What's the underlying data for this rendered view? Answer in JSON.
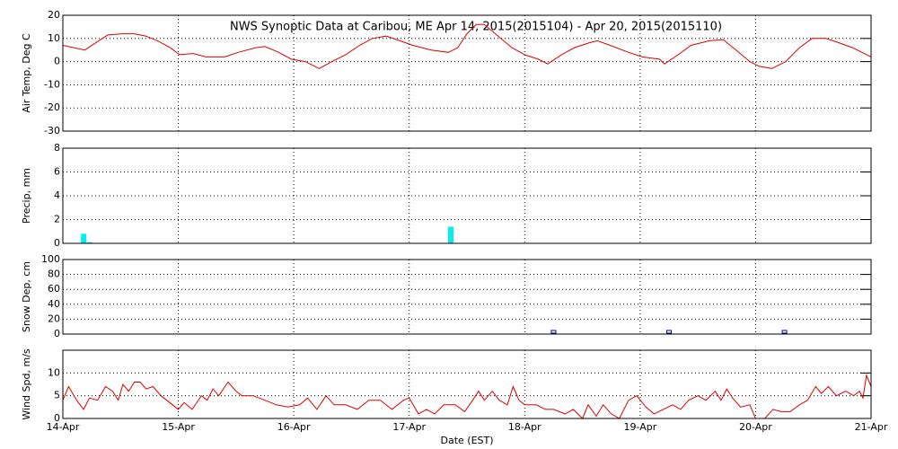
{
  "chart_data": [
    {
      "type": "line",
      "title": "NWS Synoptic Data at Caribou, ME   Apr 14, 2015(2015104) - Apr 20, 2015(2015110)",
      "y_label": "Air Temp, Deg C",
      "color": "#dd0000",
      "grid": true,
      "xlim": [
        0,
        7
      ],
      "xticks": [
        0,
        1,
        2,
        3,
        4,
        5,
        6,
        7
      ],
      "ylim": [
        -30,
        20
      ],
      "yticks": [
        -30,
        -20,
        -10,
        0,
        10,
        20
      ],
      "x": [
        0,
        0.19,
        0.31,
        0.39,
        0.51,
        0.62,
        0.72,
        0.82,
        0.93,
        1.01,
        1.13,
        1.24,
        1.4,
        1.52,
        1.67,
        1.75,
        1.87,
        1.98,
        2.1,
        2.22,
        2.33,
        2.45,
        2.57,
        2.68,
        2.8,
        2.92,
        3.03,
        3.19,
        3.34,
        3.42,
        3.5,
        3.58,
        3.65,
        3.77,
        3.89,
        4.0,
        4.12,
        4.2,
        4.32,
        4.43,
        4.55,
        4.63,
        4.74,
        4.9,
        5.02,
        5.17,
        5.21,
        5.33,
        5.44,
        5.6,
        5.72,
        5.83,
        5.95,
        6.03,
        6.14,
        6.26,
        6.38,
        6.49,
        6.61,
        6.73,
        6.84,
        7.0
      ],
      "values": [
        7,
        5,
        9,
        11.5,
        12,
        12,
        11,
        9,
        6,
        3,
        3.5,
        2,
        2,
        4,
        6,
        6.5,
        4,
        1,
        0,
        -3,
        0,
        3,
        7,
        10,
        11,
        9,
        7,
        5,
        4,
        6,
        12,
        16,
        16,
        11,
        6,
        3,
        1,
        -1,
        3,
        6,
        8,
        9,
        7,
        4,
        2,
        1,
        -1,
        3,
        7,
        9,
        9.5,
        5,
        0,
        -2,
        -3,
        0,
        6,
        10,
        10,
        8,
        6,
        2
      ]
    },
    {
      "type": "bar",
      "y_label": "Precip, mm",
      "color": "#00f0f0",
      "grid": true,
      "xlim": [
        0,
        7
      ],
      "xticks": [
        0,
        1,
        2,
        3,
        4,
        5,
        6,
        7
      ],
      "ylim": [
        0,
        8
      ],
      "yticks": [
        0,
        2,
        4,
        6,
        8
      ],
      "x": [
        0.18,
        0.23,
        3.36
      ],
      "values": [
        0.8,
        0.1,
        1.4
      ]
    },
    {
      "type": "scatter",
      "y_label": "Snow Dep, cm",
      "color": "#000080",
      "grid": true,
      "xlim": [
        0,
        7
      ],
      "xticks": [
        0,
        1,
        2,
        3,
        4,
        5,
        6,
        7
      ],
      "ylim": [
        0,
        100
      ],
      "yticks": [
        0,
        20,
        40,
        60,
        80,
        100
      ],
      "x": [
        4.25,
        5.25,
        6.25
      ],
      "values": [
        0,
        0,
        0
      ]
    },
    {
      "type": "line",
      "y_label": "Wind Spd, m/s",
      "x_label": "Date (EST)",
      "color": "#dd0000",
      "grid": true,
      "xlim": [
        0,
        7
      ],
      "xticks": [
        {
          "value": 0,
          "label": "14-Apr"
        },
        {
          "value": 1,
          "label": "15-Apr"
        },
        {
          "value": 2,
          "label": "16-Apr"
        },
        {
          "value": 3,
          "label": "17-Apr"
        },
        {
          "value": 4,
          "label": "18-Apr"
        },
        {
          "value": 5,
          "label": "19-Apr"
        },
        {
          "value": 6,
          "label": "20-Apr"
        },
        {
          "value": 7,
          "label": "21-Apr"
        }
      ],
      "ylim": [
        0,
        15
      ],
      "yticks": [
        0,
        5,
        10
      ],
      "x": [
        0,
        0.05,
        0.12,
        0.18,
        0.23,
        0.3,
        0.37,
        0.43,
        0.48,
        0.52,
        0.57,
        0.62,
        0.67,
        0.72,
        0.78,
        0.85,
        0.95,
        1.0,
        1.05,
        1.12,
        1.2,
        1.25,
        1.3,
        1.35,
        1.43,
        1.5,
        1.55,
        1.65,
        1.75,
        1.85,
        1.95,
        2.05,
        2.12,
        2.2,
        2.28,
        2.35,
        2.45,
        2.55,
        2.65,
        2.75,
        2.85,
        2.95,
        3.0,
        3.08,
        3.15,
        3.22,
        3.3,
        3.4,
        3.48,
        3.55,
        3.6,
        3.65,
        3.72,
        3.78,
        3.85,
        3.9,
        3.95,
        4.0,
        4.1,
        4.18,
        4.25,
        4.35,
        4.42,
        4.5,
        4.55,
        4.62,
        4.68,
        4.75,
        4.82,
        4.9,
        4.97,
        5.05,
        5.12,
        5.2,
        5.28,
        5.35,
        5.42,
        5.5,
        5.57,
        5.65,
        5.7,
        5.75,
        5.8,
        5.87,
        5.95,
        6.0,
        6.08,
        6.15,
        6.22,
        6.3,
        6.38,
        6.45,
        6.52,
        6.57,
        6.63,
        6.7,
        6.78,
        6.85,
        6.9,
        6.93,
        6.96,
        7.0
      ],
      "values": [
        4,
        7,
        4,
        2,
        4.5,
        4,
        7,
        6,
        4,
        7.5,
        6,
        8,
        8,
        6.5,
        7,
        5,
        3,
        2,
        3.5,
        2,
        5,
        4,
        6.5,
        5,
        8,
        6,
        5,
        5,
        4,
        3,
        2.5,
        3,
        4.5,
        2,
        5,
        3,
        3,
        2,
        4,
        4,
        2,
        4,
        4.5,
        1,
        2,
        1,
        3,
        3,
        1.5,
        4,
        6,
        4,
        6,
        4,
        3,
        7,
        4,
        3,
        3,
        2,
        2,
        1,
        2,
        0,
        3,
        0.5,
        3,
        1,
        0,
        4,
        5,
        2.5,
        1,
        2,
        3,
        2,
        4,
        5,
        4,
        6,
        4,
        6.5,
        4.5,
        2.5,
        3,
        0,
        0,
        2,
        1.5,
        1.5,
        3,
        4,
        7,
        5.5,
        7,
        5,
        6,
        5,
        6,
        4.5,
        9.5,
        7
      ]
    }
  ]
}
